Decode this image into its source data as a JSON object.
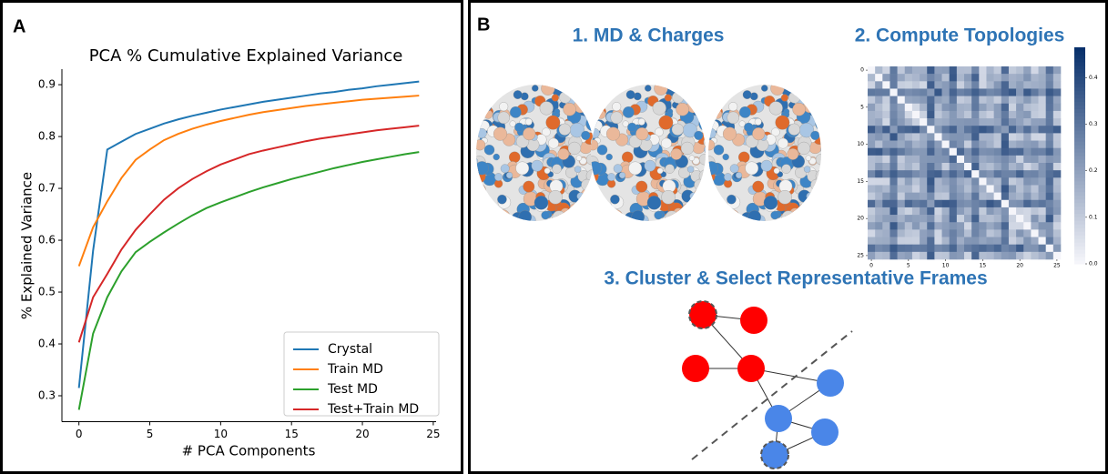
{
  "panel_a": {
    "label": "A"
  },
  "chart_data": {
    "type": "line",
    "title": "PCA % Cumulative Explained Variance",
    "x_label": "# PCA Components",
    "y_label": "% Explained Variance",
    "x": [
      0,
      1,
      2,
      3,
      4,
      5,
      6,
      7,
      8,
      9,
      10,
      11,
      12,
      13,
      14,
      15,
      16,
      17,
      18,
      19,
      20,
      21,
      22,
      23,
      24
    ],
    "series": [
      {
        "name": "Crystal",
        "color": "#1f77b4",
        "values": [
          0.315,
          0.58,
          0.775,
          0.79,
          0.805,
          0.815,
          0.825,
          0.833,
          0.84,
          0.846,
          0.852,
          0.857,
          0.862,
          0.867,
          0.871,
          0.875,
          0.879,
          0.883,
          0.886,
          0.89,
          0.893,
          0.897,
          0.9,
          0.903,
          0.906
        ]
      },
      {
        "name": "Train MD",
        "color": "#ff7f0e",
        "values": [
          0.55,
          0.625,
          0.675,
          0.72,
          0.755,
          0.775,
          0.793,
          0.805,
          0.815,
          0.823,
          0.83,
          0.836,
          0.842,
          0.847,
          0.851,
          0.855,
          0.859,
          0.862,
          0.865,
          0.868,
          0.871,
          0.873,
          0.875,
          0.877,
          0.879
        ]
      },
      {
        "name": "Test MD",
        "color": "#2ca02c",
        "values": [
          0.273,
          0.42,
          0.49,
          0.54,
          0.577,
          0.597,
          0.615,
          0.632,
          0.648,
          0.662,
          0.673,
          0.683,
          0.693,
          0.702,
          0.71,
          0.718,
          0.725,
          0.732,
          0.739,
          0.745,
          0.751,
          0.756,
          0.761,
          0.766,
          0.77
        ]
      },
      {
        "name": "Test+Train MD",
        "color": "#d62728",
        "values": [
          0.403,
          0.49,
          0.535,
          0.582,
          0.62,
          0.65,
          0.678,
          0.7,
          0.718,
          0.733,
          0.746,
          0.756,
          0.766,
          0.773,
          0.779,
          0.785,
          0.791,
          0.796,
          0.8,
          0.804,
          0.808,
          0.812,
          0.815,
          0.818,
          0.821
        ]
      }
    ],
    "xlim": [
      -1.2,
      25.2
    ],
    "xticks": [
      0,
      5,
      10,
      15,
      20,
      25
    ],
    "ylim": [
      0.25,
      0.93
    ],
    "yticks": [
      0.3,
      0.4,
      0.5,
      0.6,
      0.7,
      0.8,
      0.9
    ],
    "legend": "lower right"
  },
  "panel_b": {
    "label": "B",
    "step1": "1. MD & Charges",
    "step2": "2. Compute Topologies",
    "step3": "3. Cluster & Select Representative Frames",
    "heatmap": {
      "xticks": [
        0,
        5,
        10,
        15,
        20,
        25
      ],
      "yticks": [
        0,
        5,
        10,
        15,
        20,
        25
      ],
      "colorbar_ticks": [
        {
          "value": 0,
          "label": "0.0"
        },
        0.1,
        0.2,
        0.3,
        0.4
      ]
    }
  }
}
